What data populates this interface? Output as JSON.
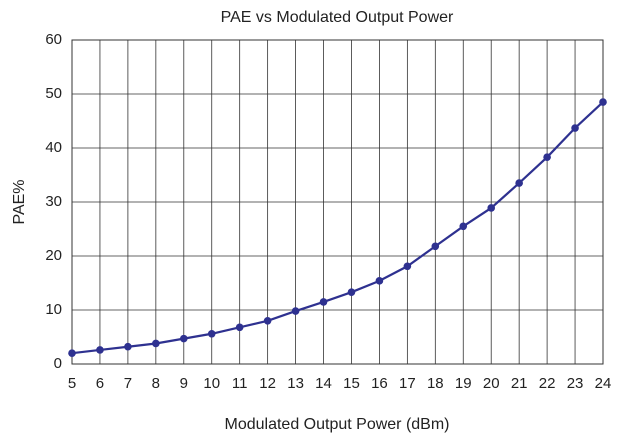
{
  "chart_data": {
    "type": "line",
    "title": "PAE vs Modulated Output Power",
    "x_label": "Modulated Output Power (dBm)",
    "y_label": "PAE%",
    "x": [
      5,
      6,
      7,
      8,
      9,
      10,
      11,
      12,
      13,
      14,
      15,
      16,
      17,
      18,
      19,
      20,
      21,
      22,
      23,
      24
    ],
    "values": [
      2.0,
      2.6,
      3.2,
      3.8,
      4.7,
      5.6,
      6.8,
      8.0,
      9.8,
      11.5,
      13.3,
      15.4,
      18.1,
      21.8,
      25.5,
      28.9,
      33.5,
      38.3,
      43.7,
      48.5
    ],
    "color": "#2e3190",
    "xlim": [
      5,
      24
    ],
    "xticks": [
      5,
      6,
      7,
      8,
      9,
      10,
      11,
      12,
      13,
      14,
      15,
      16,
      17,
      18,
      19,
      20,
      21,
      22,
      23,
      24
    ],
    "ylim": [
      0,
      60
    ],
    "yticks": [
      0,
      10,
      20,
      30,
      40,
      50,
      60
    ],
    "grid": true
  }
}
